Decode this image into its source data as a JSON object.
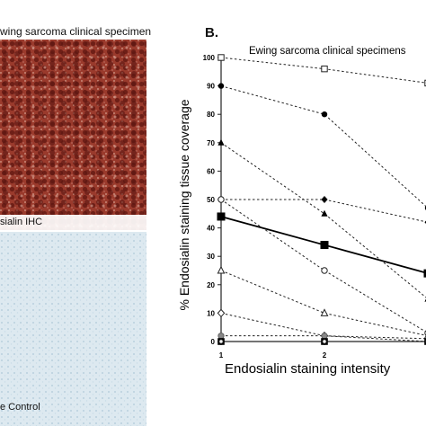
{
  "left_panel": {
    "header": "wing sarcoma clinical specimen",
    "ihc_label": "sialin IHC",
    "control_label": "e Control"
  },
  "chart_data": {
    "type": "scatter",
    "panel_label": "B.",
    "title": "Ewing sarcoma clinical specimens",
    "ylabel": "% Endosialin staining tissue coverage",
    "xlabel": "Endosialin staining intensity",
    "xlim": [
      1,
      3
    ],
    "ylim": [
      0,
      100
    ],
    "yticks": [
      0,
      10,
      20,
      30,
      40,
      50,
      60,
      70,
      80,
      90,
      100
    ],
    "xticks": [
      1,
      2
    ],
    "series": [
      {
        "marker": "square-open",
        "points": [
          [
            1,
            100
          ],
          [
            2,
            96
          ],
          [
            3,
            91
          ]
        ]
      },
      {
        "marker": "circle-filled",
        "points": [
          [
            1,
            90
          ],
          [
            2,
            80
          ],
          [
            3,
            47
          ]
        ]
      },
      {
        "marker": "triangle-filled",
        "points": [
          [
            1,
            70
          ],
          [
            2,
            45
          ],
          [
            3,
            15
          ]
        ]
      },
      {
        "marker": "diamond-filled",
        "points": [
          [
            1,
            50
          ],
          [
            2,
            50
          ],
          [
            3,
            42
          ]
        ]
      },
      {
        "marker": "circle-open",
        "points": [
          [
            1,
            50
          ],
          [
            2,
            25
          ],
          [
            3,
            3
          ]
        ]
      },
      {
        "marker": "triangle-open",
        "points": [
          [
            1,
            25
          ],
          [
            2,
            10
          ],
          [
            3,
            2
          ]
        ]
      },
      {
        "marker": "diamond-open",
        "points": [
          [
            1,
            10
          ],
          [
            2,
            2
          ],
          [
            3,
            0
          ]
        ]
      },
      {
        "marker": "circle-grey",
        "points": [
          [
            1,
            2
          ],
          [
            2,
            2
          ],
          [
            3,
            1
          ]
        ]
      },
      {
        "marker": "square-filled",
        "points": [
          [
            1,
            0
          ],
          [
            2,
            0
          ],
          [
            3,
            0
          ]
        ]
      },
      {
        "marker": "circle-open-small",
        "points": [
          [
            1,
            0
          ],
          [
            2,
            0
          ],
          [
            3,
            0
          ]
        ]
      }
    ],
    "mean_series": {
      "marker": "square-filled-large",
      "points": [
        [
          1,
          44
        ],
        [
          2,
          34
        ],
        [
          3,
          24
        ]
      ]
    },
    "colors": {
      "ihc": "#8a2e22",
      "control": "#dce9f0",
      "lines": "#222222"
    }
  }
}
